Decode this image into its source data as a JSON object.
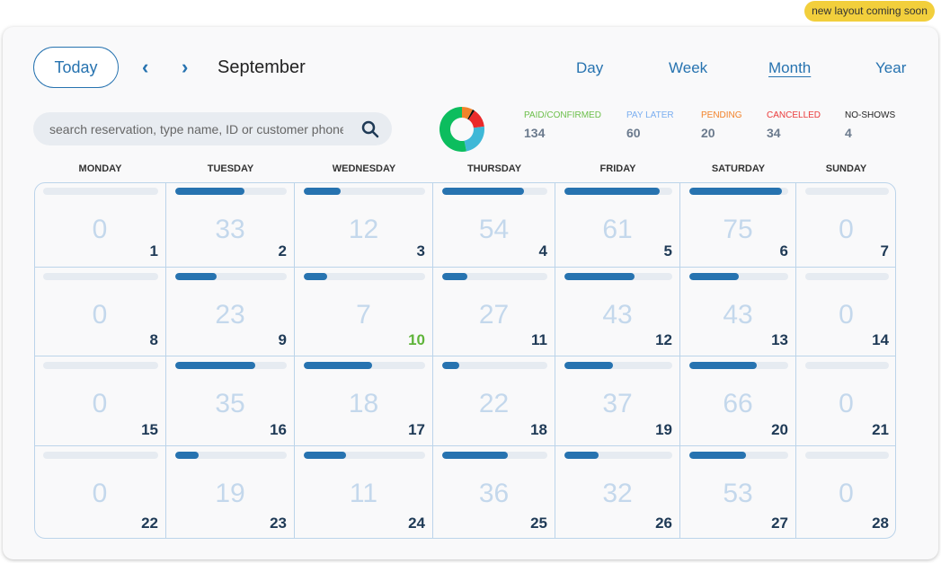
{
  "banner": "new layout coming soon",
  "header": {
    "today": "Today",
    "prev": "‹",
    "next": "›",
    "month": "September",
    "views": [
      "Day",
      "Week",
      "Month",
      "Year"
    ],
    "active_view": "Month"
  },
  "search": {
    "placeholder": "search reservation, type name, ID or customer phone"
  },
  "stats": [
    {
      "label": "PAID/CONFIRMED",
      "value": "134",
      "color": "#6cbf4a",
      "chart_color": "#0cbd5e"
    },
    {
      "label": "PAY LATER",
      "value": "60",
      "color": "#7aaef0",
      "chart_color": "#3fb8d7"
    },
    {
      "label": "PENDING",
      "value": "20",
      "color": "#f2832a",
      "chart_color": "#f2832a"
    },
    {
      "label": "CANCELLED",
      "value": "34",
      "color": "#ea3b3b",
      "chart_color": "#ea2a2a"
    },
    {
      "label": "NO-SHOWS",
      "value": "4",
      "color": "#222222",
      "chart_color": "#111111"
    }
  ],
  "weekdays": [
    "MONDAY",
    "TUESDAY",
    "WEDNESDAY",
    "THURSDAY",
    "FRIDAY",
    "SATURDAY",
    "SUNDAY"
  ],
  "today_day": "10",
  "weeks": [
    [
      {
        "day": "1",
        "count": "0",
        "fill": 0
      },
      {
        "day": "2",
        "count": "33",
        "fill": 0.62
      },
      {
        "day": "3",
        "count": "12",
        "fill": 0.3
      },
      {
        "day": "4",
        "count": "54",
        "fill": 0.78
      },
      {
        "day": "5",
        "count": "61",
        "fill": 0.88
      },
      {
        "day": "6",
        "count": "75",
        "fill": 0.94
      },
      {
        "day": "7",
        "count": "0",
        "fill": 0
      }
    ],
    [
      {
        "day": "8",
        "count": "0",
        "fill": 0
      },
      {
        "day": "9",
        "count": "23",
        "fill": 0.37
      },
      {
        "day": "10",
        "count": "7",
        "fill": 0.19
      },
      {
        "day": "11",
        "count": "27",
        "fill": 0.24
      },
      {
        "day": "12",
        "count": "43",
        "fill": 0.65
      },
      {
        "day": "13",
        "count": "43",
        "fill": 0.5
      },
      {
        "day": "14",
        "count": "0",
        "fill": 0
      }
    ],
    [
      {
        "day": "15",
        "count": "0",
        "fill": 0
      },
      {
        "day": "16",
        "count": "35",
        "fill": 0.72
      },
      {
        "day": "17",
        "count": "18",
        "fill": 0.56
      },
      {
        "day": "18",
        "count": "22",
        "fill": 0.16
      },
      {
        "day": "19",
        "count": "37",
        "fill": 0.45
      },
      {
        "day": "20",
        "count": "66",
        "fill": 0.68
      },
      {
        "day": "21",
        "count": "0",
        "fill": 0
      }
    ],
    [
      {
        "day": "22",
        "count": "0",
        "fill": 0
      },
      {
        "day": "23",
        "count": "19",
        "fill": 0.21
      },
      {
        "day": "24",
        "count": "11",
        "fill": 0.35
      },
      {
        "day": "25",
        "count": "36",
        "fill": 0.62
      },
      {
        "day": "26",
        "count": "32",
        "fill": 0.32
      },
      {
        "day": "27",
        "count": "53",
        "fill": 0.57
      },
      {
        "day": "28",
        "count": "0",
        "fill": 0
      }
    ]
  ]
}
